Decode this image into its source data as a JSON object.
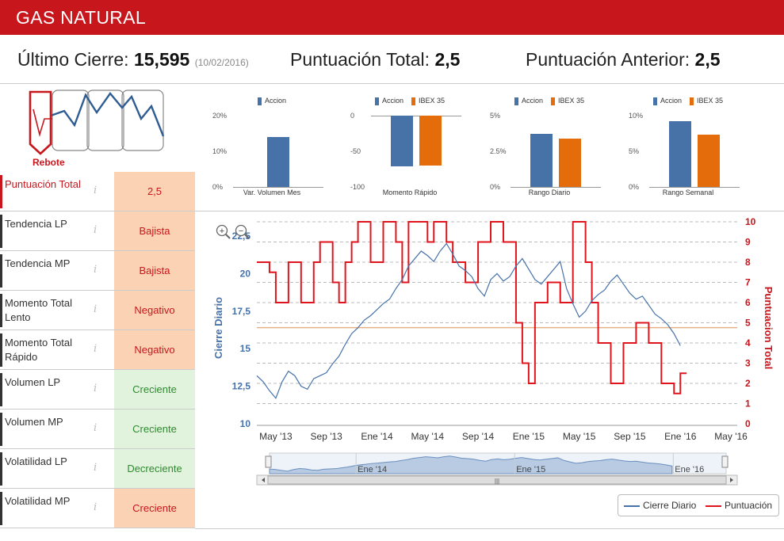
{
  "header": {
    "title": "GAS NATURAL"
  },
  "summary": {
    "last_close_label": "Último Cierre:",
    "last_close_value": "15,595",
    "last_close_date": "(10/02/2016)",
    "total_score_label": "Puntuación Total:",
    "total_score_value": "2,5",
    "prev_score_label": "Puntuación Anterior:",
    "prev_score_value": "2,5"
  },
  "logo": {
    "label": "Rebote"
  },
  "mini_charts": [
    {
      "legend": [
        "Accion"
      ],
      "ticks": [
        "20%",
        "10%",
        "0%"
      ],
      "caption": "Var. Volumen Mes",
      "values": [
        14
      ],
      "ylim": [
        0,
        20
      ]
    },
    {
      "legend": [
        "Accion",
        "IBEX 35"
      ],
      "ticks": [
        "0",
        "-50",
        "-100"
      ],
      "caption": "Momento Rápido",
      "values": [
        -71,
        -70
      ],
      "ylim": [
        -100,
        0
      ]
    },
    {
      "legend": [
        "Accion",
        "IBEX 35"
      ],
      "ticks": [
        "5%",
        "2.5%",
        "0%"
      ],
      "caption": "Rango Diario",
      "values": [
        3.7,
        3.4
      ],
      "ylim": [
        0,
        5
      ]
    },
    {
      "legend": [
        "Accion",
        "IBEX 35"
      ],
      "ticks": [
        "10%",
        "5%",
        "0%"
      ],
      "caption": "Rango Semanal",
      "values": [
        9.2,
        7.3
      ],
      "ylim": [
        0,
        10
      ]
    }
  ],
  "colors": {
    "accion": "#4672a8",
    "ibex": "#e46c0a",
    "brand": "#c8161d"
  },
  "indicators": [
    {
      "label": "Puntuación Total",
      "value": "2,5",
      "style": "orange"
    },
    {
      "label": "Tendencia LP",
      "value": "Bajista",
      "style": "orange"
    },
    {
      "label": "Tendencia MP",
      "value": "Bajista",
      "style": "orange"
    },
    {
      "label": "Momento Total Lento",
      "value": "Negativo",
      "style": "orange"
    },
    {
      "label": "Momento Total Rápido",
      "value": "Negativo",
      "style": "orange"
    },
    {
      "label": "Volumen LP",
      "value": "Creciente",
      "style": "green"
    },
    {
      "label": "Volumen MP",
      "value": "Creciente",
      "style": "green"
    },
    {
      "label": "Volatilidad LP",
      "value": "Decreciente",
      "style": "green"
    },
    {
      "label": "Volatilidad MP",
      "value": "Creciente",
      "style": "orange"
    }
  ],
  "info_glyph": "i",
  "zoom_in_glyph": "+",
  "zoom_out_glyph": "−",
  "scroll_glyph": "|||",
  "chart_data": {
    "type": "line",
    "ylabel_left": "Cierre Diario",
    "ylabel_right": "Puntuacion Total",
    "y_left_ticks": [
      "10",
      "12,5",
      "15",
      "17,5",
      "20",
      "22,5"
    ],
    "y_left_range": [
      10,
      22.5
    ],
    "y_right_ticks": [
      "0",
      "1",
      "2",
      "3",
      "4",
      "5",
      "6",
      "7",
      "8",
      "9",
      "10"
    ],
    "y_right_range": [
      0,
      10
    ],
    "x_ticks": [
      "May '13",
      "Sep '13",
      "Ene '14",
      "May '14",
      "Sep '14",
      "Ene '15",
      "May '15",
      "Sep '15",
      "Ene '16",
      "May '16"
    ],
    "navigator_ticks": [
      "Ene '14",
      "Ene '15",
      "Ene '16"
    ],
    "reference_line": 16.4,
    "legend": [
      "Cierre Diario",
      "Puntuación"
    ],
    "series": [
      {
        "name": "Cierre Diario",
        "x": [
          0,
          0.5,
          1,
          1.5,
          2,
          2.5,
          3,
          3.5,
          4,
          4.5,
          5,
          5.5,
          6,
          6.5,
          7,
          7.5,
          8,
          8.5,
          9,
          9.5,
          10,
          10.5,
          11,
          11.5,
          12,
          12.5,
          13,
          13.5,
          14,
          14.5,
          15,
          15.5,
          16,
          16.5,
          17,
          17.5,
          18,
          18.5,
          19,
          19.5,
          20,
          20.5,
          21,
          21.5,
          22,
          22.5,
          23,
          23.5,
          24,
          24.5,
          25,
          25.5,
          26,
          26.5,
          27,
          27.5,
          28,
          28.5,
          29,
          29.5,
          30,
          30.5,
          31,
          31.5,
          32,
          32.5,
          33,
          33.5
        ],
        "values": [
          13.2,
          12.8,
          12.2,
          11.7,
          12.8,
          13.5,
          13.2,
          12.5,
          12.3,
          13.0,
          13.2,
          13.4,
          14.0,
          14.5,
          15.3,
          16.0,
          16.4,
          16.9,
          17.2,
          17.6,
          18.0,
          18.3,
          19.0,
          19.6,
          20.5,
          21.0,
          21.5,
          21.2,
          20.8,
          21.5,
          22.0,
          21.3,
          20.5,
          20.2,
          19.8,
          19.0,
          18.5,
          19.6,
          20.0,
          19.5,
          19.8,
          20.5,
          21.0,
          20.3,
          19.6,
          19.3,
          19.8,
          20.3,
          20.8,
          19.0,
          18.0,
          17.1,
          17.5,
          18.2,
          18.6,
          18.9,
          19.5,
          19.9,
          19.3,
          18.7,
          18.3,
          18.5,
          17.9,
          17.3,
          17.0,
          16.6,
          16.0,
          15.2
        ]
      },
      {
        "name": "Puntuación",
        "x": [
          0,
          0.5,
          1,
          1.5,
          2,
          2.5,
          3,
          3.5,
          4,
          4.5,
          5,
          5.5,
          6,
          6.5,
          7,
          7.5,
          8,
          8.5,
          9,
          9.5,
          10,
          10.5,
          11,
          11.5,
          12,
          12.5,
          13,
          13.5,
          14,
          14.5,
          15,
          15.5,
          16,
          16.5,
          17,
          17.5,
          18,
          18.5,
          19,
          19.5,
          20,
          20.5,
          21,
          21.5,
          22,
          22.5,
          23,
          23.5,
          24,
          24.5,
          25,
          25.5,
          26,
          26.5,
          27,
          27.5,
          28,
          28.5,
          29,
          29.5,
          30,
          30.5,
          31,
          31.5,
          32,
          32.5,
          33,
          33.5
        ],
        "values": [
          8,
          8,
          7.5,
          6,
          6,
          8,
          8,
          6,
          6,
          8,
          9,
          9,
          7,
          6,
          8,
          9,
          10,
          10,
          8,
          8,
          10,
          10,
          9,
          7,
          10,
          10,
          10,
          9,
          10,
          10,
          9,
          8,
          8,
          7,
          7,
          9,
          9,
          10,
          10,
          9,
          9,
          5,
          3,
          2,
          6,
          6,
          7,
          7,
          6,
          6,
          10,
          10,
          8,
          6,
          4,
          4,
          2,
          2,
          4,
          4,
          5,
          5,
          4,
          4,
          2,
          2,
          1.5,
          2.5
        ]
      }
    ]
  }
}
